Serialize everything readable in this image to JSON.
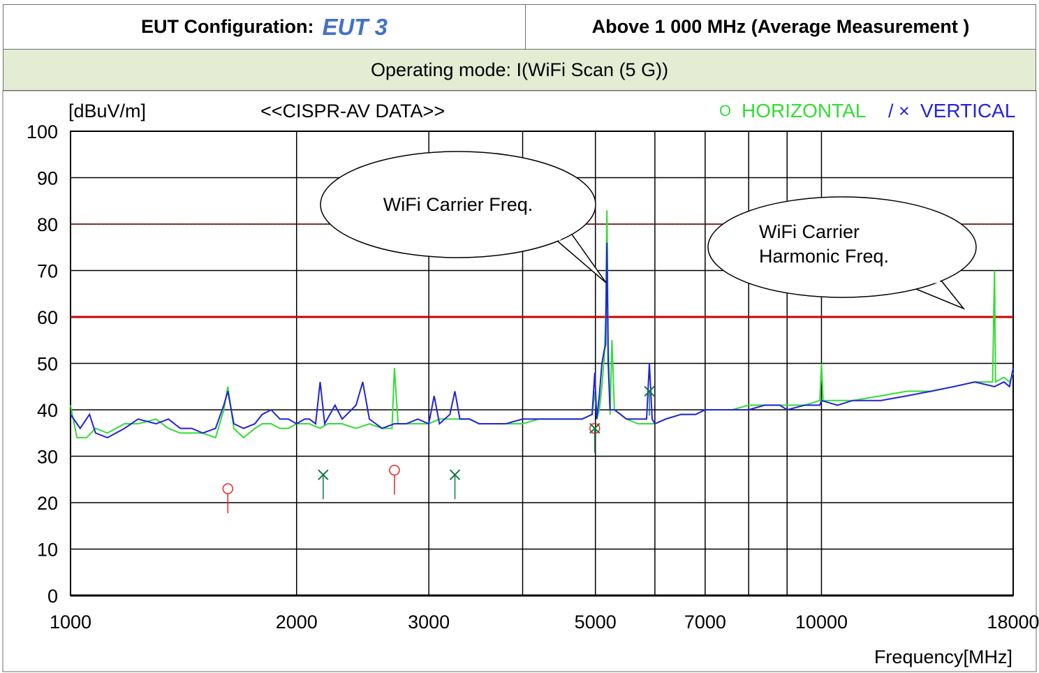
{
  "header": {
    "config_label": "EUT Configuration:",
    "config_value": "EUT 3",
    "range_label": "Above 1 000 MHz (Average Measurement )",
    "mode_label": "Operating mode: I(WiFi Scan (5 G))"
  },
  "colors": {
    "horizontal": "#33dd33",
    "vertical": "#2222dd",
    "limit": "#cc0000",
    "marker_h": "#ee2222",
    "marker_v": "#117744",
    "grid": "#000000"
  },
  "chart_data": {
    "type": "line",
    "xscale": "log",
    "title": "<<CISPR-AV DATA>>",
    "ylabel": "[dBuV/m]",
    "xlabel": "Frequency[MHz]",
    "xlim": [
      1000,
      18000
    ],
    "ylim": [
      0,
      100
    ],
    "yticks": [
      0,
      10,
      20,
      30,
      40,
      50,
      60,
      70,
      80,
      90,
      100
    ],
    "xticks": [
      1000,
      2000,
      3000,
      5000,
      7000,
      10000,
      18000
    ],
    "xgrid": [
      2000,
      3000,
      4000,
      5000,
      6000,
      7000,
      8000,
      9000,
      10000
    ],
    "legend": [
      {
        "symbol": "O",
        "name": "HORIZONTAL"
      },
      {
        "symbol": "/ ×",
        "name": "VERTICAL"
      }
    ],
    "limits": [
      {
        "kind": "limit",
        "value": 60
      },
      {
        "kind": "dotted",
        "value": 80
      }
    ],
    "series": [
      {
        "name": "HORIZONTAL",
        "points": [
          [
            1000,
            41
          ],
          [
            1020,
            34
          ],
          [
            1050,
            34
          ],
          [
            1080,
            36
          ],
          [
            1120,
            35
          ],
          [
            1180,
            37
          ],
          [
            1230,
            37
          ],
          [
            1300,
            38
          ],
          [
            1350,
            36
          ],
          [
            1400,
            35
          ],
          [
            1450,
            35
          ],
          [
            1500,
            35
          ],
          [
            1560,
            34
          ],
          [
            1600,
            40
          ],
          [
            1620,
            45
          ],
          [
            1650,
            36
          ],
          [
            1700,
            34
          ],
          [
            1760,
            36
          ],
          [
            1800,
            37
          ],
          [
            1850,
            37
          ],
          [
            1900,
            36
          ],
          [
            1950,
            36
          ],
          [
            2000,
            37
          ],
          [
            2080,
            37
          ],
          [
            2150,
            36
          ],
          [
            2200,
            37
          ],
          [
            2300,
            37
          ],
          [
            2400,
            36
          ],
          [
            2500,
            37
          ],
          [
            2600,
            36
          ],
          [
            2680,
            36
          ],
          [
            2700,
            49
          ],
          [
            2730,
            37
          ],
          [
            2800,
            37
          ],
          [
            2900,
            37
          ],
          [
            3000,
            37
          ],
          [
            3100,
            38
          ],
          [
            3200,
            38
          ],
          [
            3300,
            38
          ],
          [
            3400,
            38
          ],
          [
            3500,
            37
          ],
          [
            3600,
            37
          ],
          [
            3800,
            37
          ],
          [
            4000,
            37
          ],
          [
            4200,
            38
          ],
          [
            4400,
            38
          ],
          [
            4600,
            38
          ],
          [
            4800,
            38
          ],
          [
            4950,
            39
          ],
          [
            4990,
            44
          ],
          [
            5020,
            38
          ],
          [
            5060,
            40
          ],
          [
            5100,
            45
          ],
          [
            5140,
            52
          ],
          [
            5160,
            60
          ],
          [
            5180,
            83
          ],
          [
            5200,
            55
          ],
          [
            5230,
            39
          ],
          [
            5260,
            55
          ],
          [
            5300,
            40
          ],
          [
            5400,
            39
          ],
          [
            5500,
            38
          ],
          [
            5700,
            37
          ],
          [
            5900,
            37
          ],
          [
            6000,
            37
          ],
          [
            6200,
            38
          ],
          [
            6500,
            39
          ],
          [
            6800,
            39
          ],
          [
            7000,
            40
          ],
          [
            7300,
            40
          ],
          [
            7600,
            40
          ],
          [
            8000,
            41
          ],
          [
            8400,
            41
          ],
          [
            8800,
            41
          ],
          [
            9000,
            41
          ],
          [
            9500,
            41
          ],
          [
            9950,
            42
          ],
          [
            10000,
            50
          ],
          [
            10050,
            42
          ],
          [
            10500,
            42
          ],
          [
            11000,
            42
          ],
          [
            12000,
            43
          ],
          [
            13000,
            44
          ],
          [
            14000,
            44
          ],
          [
            15000,
            45
          ],
          [
            16000,
            46
          ],
          [
            16900,
            46
          ],
          [
            17000,
            70
          ],
          [
            17050,
            46
          ],
          [
            17500,
            47
          ],
          [
            17800,
            46
          ],
          [
            18000,
            48
          ]
        ]
      },
      {
        "name": "VERTICAL",
        "points": [
          [
            1000,
            39
          ],
          [
            1030,
            36
          ],
          [
            1060,
            39
          ],
          [
            1080,
            35
          ],
          [
            1120,
            34
          ],
          [
            1180,
            36
          ],
          [
            1230,
            38
          ],
          [
            1300,
            37
          ],
          [
            1350,
            38
          ],
          [
            1400,
            36
          ],
          [
            1450,
            36
          ],
          [
            1500,
            35
          ],
          [
            1560,
            36
          ],
          [
            1600,
            41
          ],
          [
            1620,
            44
          ],
          [
            1650,
            37
          ],
          [
            1700,
            36
          ],
          [
            1760,
            37
          ],
          [
            1800,
            39
          ],
          [
            1850,
            40
          ],
          [
            1900,
            38
          ],
          [
            1950,
            38
          ],
          [
            2000,
            37
          ],
          [
            2050,
            38
          ],
          [
            2080,
            38
          ],
          [
            2120,
            37
          ],
          [
            2150,
            46
          ],
          [
            2180,
            37
          ],
          [
            2250,
            41
          ],
          [
            2300,
            38
          ],
          [
            2400,
            41
          ],
          [
            2450,
            46
          ],
          [
            2500,
            38
          ],
          [
            2550,
            37
          ],
          [
            2600,
            36
          ],
          [
            2700,
            37
          ],
          [
            2800,
            37
          ],
          [
            2900,
            38
          ],
          [
            3000,
            37
          ],
          [
            3050,
            43
          ],
          [
            3100,
            37
          ],
          [
            3200,
            39
          ],
          [
            3250,
            44
          ],
          [
            3300,
            38
          ],
          [
            3400,
            38
          ],
          [
            3500,
            37
          ],
          [
            3600,
            37
          ],
          [
            3800,
            37
          ],
          [
            4000,
            38
          ],
          [
            4200,
            38
          ],
          [
            4400,
            38
          ],
          [
            4600,
            38
          ],
          [
            4800,
            38
          ],
          [
            4950,
            39
          ],
          [
            4990,
            48
          ],
          [
            5020,
            38
          ],
          [
            5060,
            43
          ],
          [
            5100,
            50
          ],
          [
            5140,
            53
          ],
          [
            5160,
            54
          ],
          [
            5180,
            76
          ],
          [
            5200,
            50
          ],
          [
            5230,
            40
          ],
          [
            5300,
            40
          ],
          [
            5400,
            39
          ],
          [
            5500,
            38
          ],
          [
            5700,
            38
          ],
          [
            5850,
            38
          ],
          [
            5900,
            50
          ],
          [
            5950,
            38
          ],
          [
            6000,
            37
          ],
          [
            6200,
            38
          ],
          [
            6500,
            39
          ],
          [
            6800,
            39
          ],
          [
            7000,
            40
          ],
          [
            7300,
            40
          ],
          [
            7600,
            40
          ],
          [
            8000,
            40
          ],
          [
            8400,
            41
          ],
          [
            8800,
            41
          ],
          [
            9000,
            40
          ],
          [
            9500,
            41
          ],
          [
            9950,
            41
          ],
          [
            10000,
            42
          ],
          [
            10500,
            41
          ],
          [
            11000,
            42
          ],
          [
            12000,
            42
          ],
          [
            13000,
            43
          ],
          [
            14000,
            44
          ],
          [
            15000,
            45
          ],
          [
            16000,
            46
          ],
          [
            17000,
            45
          ],
          [
            17500,
            46
          ],
          [
            17800,
            45
          ],
          [
            18000,
            49
          ]
        ]
      }
    ],
    "markers": [
      {
        "pol": "H",
        "x": 1620,
        "y": 23
      },
      {
        "pol": "H",
        "x": 2700,
        "y": 27
      },
      {
        "pol": "H",
        "x": 4990,
        "y": 36
      },
      {
        "pol": "V",
        "x": 2170,
        "y": 26
      },
      {
        "pol": "V",
        "x": 3250,
        "y": 26
      },
      {
        "pol": "V",
        "x": 4990,
        "y": 36
      },
      {
        "pol": "V",
        "x": 5900,
        "y": 44
      }
    ],
    "annotations": [
      {
        "lines": [
          "WiFi Carrier Freq."
        ]
      },
      {
        "lines": [
          "WiFi Carrier",
          "Harmonic Freq."
        ]
      }
    ]
  }
}
